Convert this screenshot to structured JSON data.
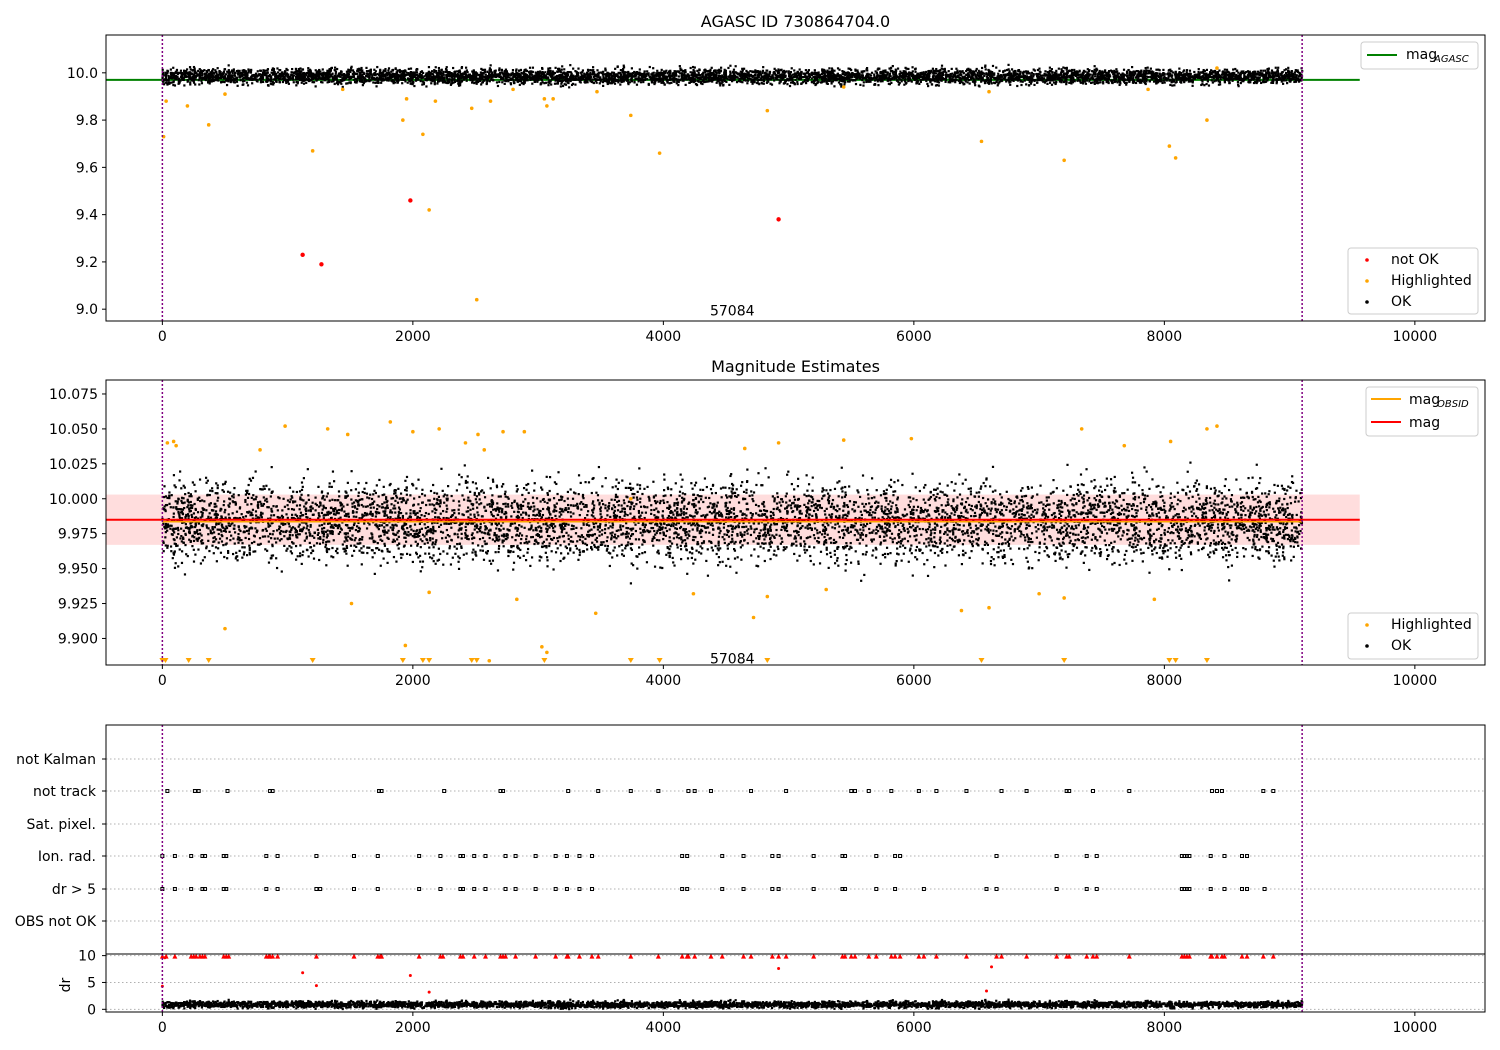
{
  "chart_data": [
    {
      "type": "scatter",
      "title": "AGASC ID 730864704.0",
      "xlabel": "",
      "ylabel": "",
      "xlim": [
        -450,
        10560
      ],
      "ylim": [
        8.95,
        10.16
      ],
      "xticks": [
        0,
        2000,
        4000,
        6000,
        8000,
        10000
      ],
      "yticks": [
        9.0,
        9.2,
        9.4,
        9.6,
        9.8,
        10.0
      ],
      "ytick_labels": [
        "9.0",
        "9.2",
        "9.4",
        "9.6",
        "9.8",
        "10.0"
      ],
      "annotation": "57084",
      "annotation_x": 4550,
      "annotation_y": 8.995,
      "vlines": [
        0,
        9100
      ],
      "series": [
        {
          "name": "mag_AGASC",
          "kind": "hline",
          "y": 9.97,
          "x_range": [
            -450,
            9560
          ],
          "color": "#008000"
        },
        {
          "name": "not OK",
          "kind": "points",
          "color": "#ff0000",
          "x": [
            1120,
            1270,
            1980,
            4920
          ],
          "y": [
            9.23,
            9.19,
            9.46,
            9.38
          ]
        },
        {
          "name": "Highlighted",
          "kind": "points",
          "color": "#ffa500",
          "x": [
            10,
            30,
            200,
            370,
            500,
            1200,
            1440,
            1920,
            1950,
            2080,
            2130,
            2180,
            2470,
            2510,
            2620,
            2800,
            3050,
            3070,
            3120,
            3470,
            3740,
            3970,
            4830,
            5440,
            6540,
            6600,
            7200,
            7870,
            8040,
            8090,
            8340,
            8420
          ],
          "y": [
            9.73,
            9.88,
            9.86,
            9.78,
            9.91,
            9.67,
            9.93,
            9.8,
            9.89,
            9.74,
            9.42,
            9.88,
            9.85,
            9.04,
            9.88,
            9.93,
            9.89,
            9.86,
            9.89,
            9.92,
            9.82,
            9.66,
            9.84,
            9.94,
            9.71,
            9.92,
            9.63,
            9.93,
            9.69,
            9.64,
            9.8,
            10.02
          ]
        },
        {
          "name": "OK",
          "kind": "band",
          "color": "#000000",
          "x_range": [
            0,
            9100
          ],
          "center": 9.985,
          "spread": 0.032,
          "n": 6000
        }
      ],
      "legend_top": [
        {
          "label": "mag",
          "sub": "AGASC",
          "color": "#008000"
        }
      ],
      "legend_bottom": [
        {
          "label": "not OK",
          "color": "#ff0000"
        },
        {
          "label": "Highlighted",
          "color": "#ffa500"
        },
        {
          "label": "OK",
          "color": "#000000"
        }
      ]
    },
    {
      "type": "scatter",
      "title": "Magnitude Estimates",
      "xlabel": "",
      "ylabel": "",
      "xlim": [
        -450,
        10560
      ],
      "ylim": [
        9.881,
        10.085
      ],
      "xticks": [
        0,
        2000,
        4000,
        6000,
        8000,
        10000
      ],
      "yticks": [
        9.9,
        9.925,
        9.95,
        9.975,
        10.0,
        10.025,
        10.05,
        10.075
      ],
      "ytick_labels": [
        "9.900",
        "9.925",
        "9.950",
        "9.975",
        "10.000",
        "10.025",
        "10.050",
        "10.075"
      ],
      "annotation": "57084",
      "annotation_x": 4550,
      "annotation_y": 9.8855,
      "vlines": [
        0,
        9100
      ],
      "band": {
        "y0": 9.967,
        "y1": 10.003,
        "x_range": [
          -450,
          9560
        ],
        "color": "#ffb3b3"
      },
      "series": [
        {
          "name": "mag",
          "kind": "hline",
          "y": 9.985,
          "x_range": [
            -450,
            9560
          ],
          "color": "#ff0000"
        },
        {
          "name": "mag_OBSID",
          "kind": "obsid",
          "color": "#ffa500",
          "x_range": [
            0,
            9100
          ]
        },
        {
          "name": "Highlighted",
          "kind": "points",
          "color": "#ffa500",
          "x": [
            40,
            90,
            110,
            500,
            780,
            980,
            1320,
            1480,
            1510,
            1820,
            1940,
            2000,
            2130,
            2210,
            2420,
            2520,
            2570,
            2610,
            2720,
            2830,
            2890,
            3030,
            3070,
            3460,
            3740,
            4240,
            4650,
            4720,
            4830,
            4920,
            5300,
            5440,
            5980,
            6380,
            6600,
            7000,
            7200,
            7340,
            7680,
            7920,
            8050,
            8340,
            8420
          ],
          "y": [
            10.04,
            10.041,
            10.038,
            9.907,
            10.035,
            10.052,
            10.05,
            10.046,
            9.925,
            10.055,
            9.895,
            10.048,
            9.933,
            10.05,
            10.04,
            10.046,
            10.035,
            9.884,
            10.048,
            9.928,
            10.048,
            9.894,
            9.89,
            9.918,
            10.0,
            9.932,
            10.036,
            9.915,
            9.93,
            10.04,
            9.935,
            10.042,
            10.043,
            9.92,
            9.922,
            9.932,
            9.929,
            10.05,
            10.038,
            9.928,
            10.041,
            10.05,
            10.052
          ]
        },
        {
          "name": "Highlighted-offscale",
          "kind": "markers",
          "color": "#ffa500",
          "x": [
            0,
            25,
            210,
            370,
            1200,
            1920,
            2080,
            2130,
            2470,
            2510,
            3050,
            3740,
            3970,
            4830,
            6540,
            7200,
            8040,
            8090,
            8340
          ]
        },
        {
          "name": "OK",
          "kind": "band",
          "color": "#000000",
          "x_range": [
            0,
            9100
          ],
          "center": 9.984,
          "spread": 0.028,
          "n": 6000
        }
      ],
      "legend_top": [
        {
          "label": "mag",
          "sub": "OBSID",
          "color": "#ffa500"
        },
        {
          "label": "mag",
          "sub": "",
          "color": "#ff0000"
        }
      ],
      "legend_bottom": [
        {
          "label": "Highlighted",
          "color": "#ffa500"
        },
        {
          "label": "OK",
          "color": "#000000"
        }
      ]
    },
    {
      "type": "scatter",
      "title": "",
      "xlabel": "",
      "ylabel": "",
      "xlim": [
        -450,
        10560
      ],
      "categories": [
        "not Kalman",
        "not track",
        "Sat. pixel.",
        "Ion. rad.",
        "dr > 5",
        "OBS not OK"
      ],
      "vlines": [
        0,
        9100
      ],
      "series": [
        {
          "name": "not track",
          "row": 1,
          "color": "#000000",
          "x": [
            40,
            260,
            290,
            520,
            860,
            880,
            1730,
            1750,
            2250,
            2700,
            2720,
            3240,
            3480,
            3740,
            3960,
            4200,
            4250,
            4380,
            4700,
            4980,
            5500,
            5530,
            5640,
            5820,
            6040,
            6180,
            6420,
            6700,
            6900,
            7220,
            7240,
            7430,
            7720,
            8380,
            8420,
            8460,
            8790,
            8870
          ]
        },
        {
          "name": "Ion. rad.",
          "row": 3,
          "color": "#000000",
          "x": [
            0,
            100,
            230,
            320,
            340,
            490,
            510,
            830,
            920,
            1230,
            1530,
            1720,
            2050,
            2220,
            2380,
            2400,
            2490,
            2580,
            2740,
            2820,
            2980,
            3140,
            3230,
            3330,
            3430,
            4150,
            4190,
            4470,
            4640,
            4870,
            4920,
            5200,
            5430,
            5450,
            5700,
            5850,
            5890,
            6660,
            7140,
            7380,
            7460,
            8140,
            8160,
            8180,
            8200,
            8370,
            8480,
            8620,
            8660
          ]
        },
        {
          "name": "dr > 5",
          "row": 4,
          "color": "#000000",
          "x": [
            0,
            100,
            230,
            320,
            340,
            490,
            510,
            830,
            920,
            1230,
            1260,
            1530,
            1720,
            2050,
            2220,
            2380,
            2400,
            2490,
            2580,
            2740,
            2820,
            2980,
            3140,
            3230,
            3330,
            3430,
            4150,
            4190,
            4470,
            4640,
            4870,
            4920,
            5200,
            5430,
            5450,
            5700,
            5850,
            6080,
            6580,
            6660,
            7140,
            7380,
            7460,
            8140,
            8160,
            8180,
            8200,
            8370,
            8480,
            8620,
            8660,
            8800
          ]
        }
      ]
    },
    {
      "type": "scatter",
      "title": "",
      "xlabel": "",
      "ylabel": "dr",
      "xlim": [
        -450,
        10560
      ],
      "ylim": [
        -0.5,
        10.3
      ],
      "yticks": [
        0,
        5,
        10
      ],
      "ytick_labels": [
        "0",
        "5",
        "10"
      ],
      "xticks": [
        0,
        2000,
        4000,
        6000,
        8000,
        10000
      ],
      "vlines": [
        0,
        9100
      ],
      "series": [
        {
          "name": "dr-outliers",
          "kind": "points",
          "color": "#ff0000",
          "x": [
            0,
            20,
            1120,
            1230,
            1980,
            2130,
            4920,
            6580,
            6620
          ],
          "y": [
            4.3,
            9.6,
            6.8,
            4.4,
            6.3,
            3.2,
            7.6,
            3.4,
            7.9
          ]
        },
        {
          "name": "dr-clipped",
          "kind": "tris",
          "color": "#ff0000",
          "x": [
            0,
            30,
            100,
            230,
            250,
            270,
            300,
            320,
            340,
            490,
            510,
            530,
            830,
            850,
            860,
            880,
            920,
            1230,
            1530,
            1720,
            1740,
            1750,
            2050,
            2220,
            2240,
            2380,
            2400,
            2490,
            2580,
            2700,
            2720,
            2740,
            2820,
            2980,
            3140,
            3230,
            3240,
            3330,
            3430,
            3480,
            3740,
            3960,
            4150,
            4190,
            4200,
            4250,
            4380,
            4470,
            4640,
            4700,
            4870,
            4920,
            4980,
            5200,
            5430,
            5450,
            5500,
            5530,
            5640,
            5700,
            5820,
            5850,
            5890,
            6040,
            6080,
            6180,
            6420,
            6660,
            6700,
            6900,
            7140,
            7220,
            7240,
            7380,
            7430,
            7460,
            7720,
            8140,
            8160,
            8180,
            8200,
            8370,
            8380,
            8420,
            8460,
            8480,
            8620,
            8660,
            8790,
            8870
          ]
        },
        {
          "name": "dr-scatter",
          "kind": "noise",
          "color": "#000000",
          "x_range": [
            0,
            9100
          ],
          "center": 0.9,
          "spread": 0.5,
          "n": 4500
        }
      ]
    }
  ],
  "colors": {
    "ok": "#000000",
    "highlighted": "#ffa500",
    "not_ok": "#ff0000",
    "vline": "#800080",
    "grid": "#b0b0b0"
  }
}
